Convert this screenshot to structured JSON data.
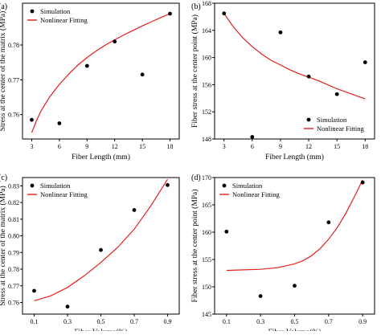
{
  "legend": {
    "simulation": "Simulation",
    "fitting": "Nonlinear Fitting"
  },
  "colors": {
    "fit": "#e0201b",
    "points": "#000000"
  },
  "chart_data": [
    {
      "type": "scatter",
      "panel_label": "(a)",
      "xlabel": "Fiber Length (mm)",
      "ylabel": "Stress at the center of the matrix (MPa)",
      "xlim": [
        2,
        19
      ],
      "ylim": [
        0.753,
        0.792
      ],
      "xticks": [
        3,
        6,
        9,
        12,
        15,
        18
      ],
      "xtick_labels": [
        "3",
        "6",
        "9",
        "12",
        "15",
        "18"
      ],
      "yticks": [
        0.76,
        0.77,
        0.78
      ],
      "ytick_labels": [
        "0.76",
        "0.77",
        "0.78"
      ],
      "legend_position": "top-left",
      "series": [
        {
          "name": "Simulation",
          "x": [
            3,
            6,
            9,
            12,
            15,
            18
          ],
          "y": [
            0.7585,
            0.7575,
            0.774,
            0.781,
            0.7715,
            0.789
          ]
        },
        {
          "name": "Nonlinear Fitting",
          "x": [
            3,
            3.5,
            4,
            5,
            6,
            7,
            8,
            9,
            10,
            11,
            12,
            13,
            14,
            15,
            16,
            17,
            18
          ],
          "y": [
            0.7548,
            0.7582,
            0.761,
            0.7653,
            0.7687,
            0.7716,
            0.7742,
            0.7764,
            0.7783,
            0.78,
            0.7815,
            0.7829,
            0.7842,
            0.7855,
            0.7867,
            0.7879,
            0.789
          ]
        }
      ]
    },
    {
      "type": "scatter",
      "panel_label": "(b)",
      "xlabel": "Fiber Length (mm)",
      "ylabel": "Fiber stress at the center point (MPa)",
      "xlim": [
        2,
        19
      ],
      "ylim": [
        148,
        168
      ],
      "xticks": [
        3,
        6,
        9,
        12,
        15,
        18
      ],
      "xtick_labels": [
        "3",
        "6",
        "9",
        "12",
        "15",
        "18"
      ],
      "yticks": [
        148,
        152,
        156,
        160,
        164,
        168
      ],
      "ytick_labels": [
        "148",
        "152",
        "156",
        "160",
        "164",
        "168"
      ],
      "legend_position": "bottom-right",
      "series": [
        {
          "name": "Simulation",
          "x": [
            3,
            6,
            9,
            12,
            15,
            18
          ],
          "y": [
            166.5,
            148.3,
            163.7,
            157.2,
            154.6,
            159.3
          ]
        },
        {
          "name": "Nonlinear Fitting",
          "x": [
            3,
            4,
            5,
            6,
            7,
            8,
            9,
            10,
            11,
            12,
            13,
            14,
            15,
            16,
            17,
            18
          ],
          "y": [
            166.5,
            164.5,
            162.9,
            161.6,
            160.5,
            159.6,
            158.9,
            158.2,
            157.6,
            157.1,
            156.6,
            156.0,
            155.4,
            154.9,
            154.4,
            153.9
          ]
        }
      ]
    },
    {
      "type": "scatter",
      "panel_label": "(c)",
      "xlabel": "Fiber Volume(%)",
      "ylabel": "Stress at the center of the matrix (MPa)",
      "xlim": [
        0.03,
        0.97
      ],
      "ylim": [
        0.753,
        0.835
      ],
      "xticks": [
        0.1,
        0.3,
        0.5,
        0.7,
        0.9
      ],
      "xtick_labels": [
        "0.1",
        "0.3",
        "0.5",
        "0.7",
        "0.9"
      ],
      "yticks": [
        0.76,
        0.77,
        0.78,
        0.79,
        0.8,
        0.81,
        0.82,
        0.83
      ],
      "ytick_labels": [
        "0.76",
        "0.77",
        "0.78",
        "0.79",
        "0.80",
        "0.81",
        "0.82",
        "0.83"
      ],
      "legend_position": "top-left",
      "series": [
        {
          "name": "Simulation",
          "x": [
            0.1,
            0.3,
            0.5,
            0.7,
            0.9
          ],
          "y": [
            0.767,
            0.7575,
            0.7915,
            0.8155,
            0.8305
          ]
        },
        {
          "name": "Nonlinear Fitting",
          "x": [
            0.1,
            0.2,
            0.3,
            0.4,
            0.5,
            0.6,
            0.7,
            0.8,
            0.9
          ],
          "y": [
            0.761,
            0.764,
            0.769,
            0.776,
            0.784,
            0.793,
            0.804,
            0.818,
            0.834
          ]
        }
      ]
    },
    {
      "type": "scatter",
      "panel_label": "(d)",
      "xlabel": "Fiber Volume(%)",
      "ylabel": "Fiber stress at the center point (MPa)",
      "xlim": [
        0.03,
        0.97
      ],
      "ylim": [
        145,
        170
      ],
      "xticks": [
        0.1,
        0.3,
        0.5,
        0.7,
        0.9
      ],
      "xtick_labels": [
        "0.1",
        "0.3",
        "0.5",
        "0.7",
        "0.9"
      ],
      "yticks": [
        145,
        150,
        155,
        160,
        165,
        170
      ],
      "ytick_labels": [
        "145",
        "150",
        "155",
        "160",
        "165",
        "170"
      ],
      "legend_position": "top-left",
      "series": [
        {
          "name": "Simulation",
          "x": [
            0.1,
            0.3,
            0.5,
            0.7,
            0.9
          ],
          "y": [
            160.1,
            148.3,
            150.2,
            161.8,
            169.1
          ]
        },
        {
          "name": "Nonlinear Fitting",
          "x": [
            0.1,
            0.2,
            0.3,
            0.4,
            0.5,
            0.55,
            0.6,
            0.65,
            0.7,
            0.75,
            0.8,
            0.85,
            0.9
          ],
          "y": [
            153.0,
            153.1,
            153.2,
            153.5,
            154.2,
            154.8,
            155.7,
            157.0,
            158.7,
            160.8,
            163.4,
            166.4,
            169.6
          ]
        }
      ]
    }
  ]
}
